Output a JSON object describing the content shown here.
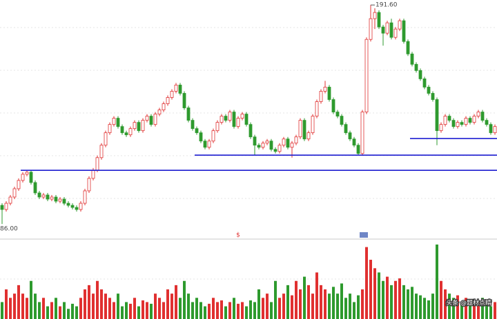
{
  "chart_data": {
    "type": "candlestick",
    "open": [
      95,
      93,
      96,
      99,
      103,
      107,
      110,
      111,
      106,
      101,
      99,
      100,
      98,
      99,
      97,
      98,
      96,
      95,
      94,
      93,
      96,
      102,
      108,
      112,
      118,
      124,
      130,
      134,
      137,
      133,
      130,
      129,
      132,
      135,
      131,
      136,
      138,
      134,
      139,
      141,
      144,
      147,
      150,
      153,
      149,
      142,
      136,
      132,
      130,
      126,
      123,
      126,
      131,
      135,
      138,
      136,
      140,
      133,
      137,
      139,
      134,
      128,
      124,
      123,
      125,
      126,
      122,
      121,
      124,
      127,
      123,
      125,
      128,
      136,
      127,
      130,
      138,
      145,
      150,
      152,
      146,
      140,
      138,
      134,
      130,
      127,
      124,
      120,
      140,
      175,
      185,
      188,
      181,
      178,
      183,
      176,
      180,
      184,
      174,
      168,
      163,
      160,
      156,
      152,
      149,
      146,
      131,
      134,
      138,
      136,
      133,
      135,
      134,
      137,
      135,
      138,
      140,
      136,
      134,
      130
    ],
    "high": [
      96,
      97,
      100,
      104,
      108,
      111,
      112,
      112,
      107,
      102,
      101,
      101,
      100,
      100,
      99,
      99,
      97,
      96,
      95,
      97,
      103,
      109,
      113,
      119,
      125,
      131,
      135,
      138,
      138,
      134,
      131,
      133,
      136,
      136,
      137,
      139,
      139,
      140,
      142,
      145,
      148,
      151,
      154,
      154,
      150,
      143,
      137,
      133,
      131,
      127,
      127,
      132,
      136,
      139,
      139,
      141,
      141,
      138,
      140,
      140,
      135,
      129,
      125,
      126,
      127,
      127,
      123,
      125,
      128,
      128,
      126,
      129,
      137,
      137,
      131,
      139,
      146,
      151,
      155,
      153,
      147,
      141,
      139,
      135,
      131,
      128,
      125,
      141,
      176,
      191.6,
      190,
      189,
      182,
      184,
      185,
      181,
      185,
      185,
      175,
      169,
      164,
      161,
      157,
      153,
      150,
      147,
      135,
      139,
      139,
      137,
      136,
      136,
      138,
      138,
      139,
      141,
      141,
      137,
      135,
      134
    ],
    "low": [
      86,
      92,
      95,
      98,
      102,
      106,
      109,
      105,
      100,
      98,
      98,
      97,
      97,
      96,
      96,
      95,
      94,
      93,
      92,
      92,
      95,
      101,
      107,
      111,
      117,
      123,
      129,
      133,
      132,
      129,
      128,
      128,
      131,
      130,
      130,
      135,
      133,
      133,
      138,
      140,
      143,
      146,
      149,
      148,
      141,
      135,
      131,
      129,
      125,
      122,
      122,
      125,
      130,
      134,
      135,
      135,
      132,
      132,
      136,
      133,
      127,
      119,
      122,
      122,
      124,
      121,
      120,
      120,
      123,
      122,
      118,
      124,
      127,
      126,
      126,
      129,
      137,
      144,
      149,
      145,
      139,
      137,
      133,
      129,
      126,
      123,
      119,
      119,
      139,
      174,
      180,
      180,
      172,
      177,
      175,
      175,
      179,
      173,
      167,
      162,
      159,
      155,
      151,
      148,
      145,
      124,
      130,
      133,
      135,
      132,
      132,
      133,
      133,
      134,
      134,
      137,
      135,
      133,
      129,
      129
    ],
    "close": [
      93,
      96,
      99,
      103,
      107,
      110,
      111,
      106,
      101,
      99,
      100,
      98,
      99,
      97,
      98,
      96,
      95,
      94,
      93,
      96,
      102,
      108,
      112,
      118,
      124,
      130,
      134,
      137,
      133,
      130,
      129,
      132,
      135,
      131,
      136,
      138,
      134,
      139,
      141,
      144,
      147,
      150,
      153,
      149,
      142,
      136,
      132,
      130,
      126,
      123,
      126,
      131,
      135,
      138,
      136,
      140,
      133,
      137,
      139,
      134,
      128,
      124,
      123,
      125,
      126,
      122,
      121,
      124,
      127,
      123,
      125,
      128,
      136,
      127,
      130,
      138,
      145,
      150,
      152,
      146,
      140,
      138,
      134,
      130,
      127,
      124,
      120,
      140,
      175,
      185,
      188,
      181,
      178,
      183,
      176,
      180,
      184,
      174,
      168,
      163,
      160,
      156,
      152,
      149,
      146,
      131,
      134,
      138,
      136,
      133,
      135,
      134,
      137,
      135,
      138,
      140,
      136,
      134,
      130,
      133
    ],
    "volume": [
      20,
      35,
      25,
      30,
      40,
      30,
      25,
      45,
      30,
      20,
      25,
      15,
      20,
      25,
      15,
      20,
      12,
      18,
      15,
      25,
      35,
      40,
      30,
      45,
      35,
      30,
      25,
      20,
      30,
      15,
      20,
      18,
      25,
      15,
      22,
      20,
      18,
      30,
      25,
      20,
      35,
      30,
      40,
      25,
      45,
      30,
      20,
      25,
      20,
      15,
      18,
      25,
      20,
      22,
      15,
      20,
      25,
      18,
      20,
      15,
      22,
      20,
      35,
      25,
      30,
      20,
      45,
      25,
      30,
      40,
      28,
      45,
      35,
      50,
      40,
      30,
      55,
      40,
      35,
      30,
      38,
      30,
      42,
      25,
      30,
      20,
      28,
      35,
      85,
      70,
      60,
      55,
      45,
      50,
      40,
      45,
      48,
      40,
      35,
      38,
      30,
      28,
      25,
      22,
      30,
      88,
      45,
      35,
      30,
      25,
      28,
      20,
      25,
      18,
      22,
      20,
      25,
      18,
      15,
      20
    ],
    "ylim": [
      79.4,
      194.0
    ],
    "volume_ylim": [
      0,
      92
    ],
    "up_color": "#e03030",
    "down_color": "#2e9a2e",
    "high_label": {
      "index": 89,
      "label": "191.60"
    },
    "low_label": {
      "index": 0,
      "label": "86.00"
    },
    "levels": [
      {
        "value": 111.9,
        "from": 5,
        "color": "#1c1cd0"
      },
      {
        "value": 119.2,
        "from": 47,
        "color": "#1c1cd0"
      },
      {
        "value": 127.2,
        "from": 99,
        "color": "#1c1cd0"
      }
    ],
    "markers": [
      {
        "index": 57,
        "text": "$"
      }
    ],
    "watermark": "头条 @题材点睛"
  }
}
